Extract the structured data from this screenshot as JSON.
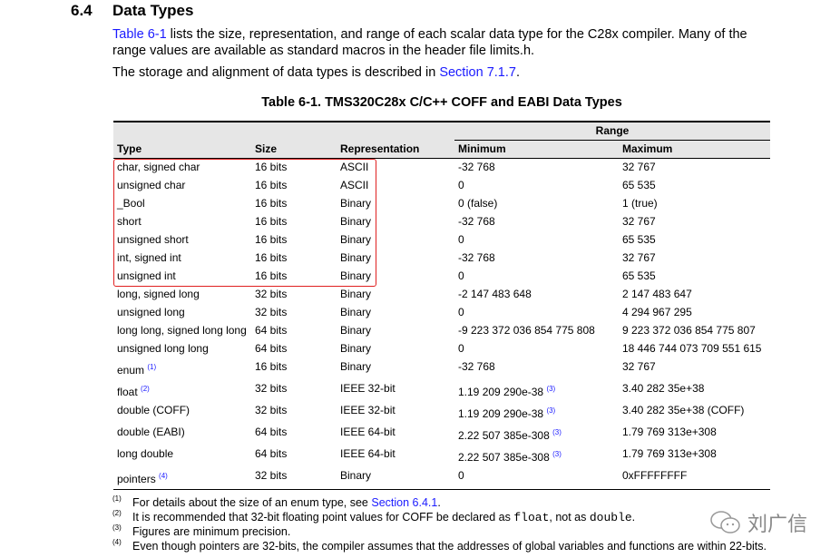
{
  "section": {
    "number": "6.4",
    "title": "Data Types"
  },
  "para1": {
    "link": "Table 6-1",
    "text": " lists the size, representation, and range of each scalar data type for the C28x compiler. Many of the range values are available as standard macros in the header file limits.h."
  },
  "para2": {
    "text": "The storage and alignment of data types is described in ",
    "link": "Section 7.1.7",
    "end": "."
  },
  "table": {
    "title": "Table 6-1. TMS320C28x C/C++ COFF and EABI Data Types",
    "headers": {
      "type": "Type",
      "size": "Size",
      "representation": "Representation",
      "range": "Range",
      "minimum": "Minimum",
      "maximum": "Maximum"
    },
    "rows": [
      {
        "type": "char, signed char",
        "size": "16 bits",
        "rep": "ASCII",
        "min": "-32 768",
        "max": "32 767"
      },
      {
        "type": "unsigned char",
        "size": "16 bits",
        "rep": "ASCII",
        "min": "0",
        "max": "65 535"
      },
      {
        "type": "_Bool",
        "size": "16 bits",
        "rep": "Binary",
        "min": "0 (false)",
        "max": "1 (true)"
      },
      {
        "type": "short",
        "size": "16 bits",
        "rep": "Binary",
        "min": "-32 768",
        "max": "32 767"
      },
      {
        "type": "unsigned short",
        "size": "16 bits",
        "rep": "Binary",
        "min": "0",
        "max": "65 535"
      },
      {
        "type": "int, signed int",
        "size": "16 bits",
        "rep": "Binary",
        "min": "-32 768",
        "max": "32 767"
      },
      {
        "type": "unsigned int",
        "size": "16 bits",
        "rep": "Binary",
        "min": "0",
        "max": "65 535"
      },
      {
        "type": "long, signed long",
        "size": "32 bits",
        "rep": "Binary",
        "min": "-2 147 483 648",
        "max": "2 147 483 647"
      },
      {
        "type": "unsigned long",
        "size": "32 bits",
        "rep": "Binary",
        "min": "0",
        "max": "4 294 967 295"
      },
      {
        "type": "long long, signed long long",
        "size": "64 bits",
        "rep": "Binary",
        "min": "-9 223 372 036 854 775 808",
        "max": "9 223 372 036 854 775 807"
      },
      {
        "type": "unsigned long long",
        "size": "64 bits",
        "rep": "Binary",
        "min": "0",
        "max": "18 446 744 073 709 551 615"
      },
      {
        "type": "enum",
        "type_note": "(1)",
        "size": "16 bits",
        "rep": "Binary",
        "min": "-32 768",
        "max": "32 767"
      },
      {
        "type": "float",
        "type_note": "(2)",
        "size": "32 bits",
        "rep": "IEEE 32-bit",
        "min": "1.19 209 290e-38",
        "min_note": "(3)",
        "max": "3.40 282 35e+38"
      },
      {
        "type": "double (COFF)",
        "size": "32 bits",
        "rep": "IEEE 32-bit",
        "min": "1.19 209 290e-38",
        "min_note": "(3)",
        "max": "3.40 282 35e+38 (COFF)"
      },
      {
        "type": "double (EABI)",
        "size": "64 bits",
        "rep": "IEEE 64-bit",
        "min": "2.22 507 385e-308",
        "min_note": "(3)",
        "max": "1.79 769 313e+308"
      },
      {
        "type": "long double",
        "size": "64 bits",
        "rep": "IEEE 64-bit",
        "min": "2.22 507 385e-308",
        "min_note": "(3)",
        "max": "1.79 769 313e+308"
      },
      {
        "type": "pointers",
        "type_note": "(4)",
        "size": "32 bits",
        "rep": "Binary",
        "min": "0",
        "max": "0xFFFFFFFF"
      }
    ]
  },
  "footnotes": [
    {
      "mark": "(1)",
      "text": "For details about the size of an enum type, see ",
      "link": "Section 6.4.1",
      "end": "."
    },
    {
      "mark": "(2)",
      "text": "It is recommended that 32-bit floating point values for COFF be declared as ",
      "code1": "float",
      "mid": ", not as ",
      "code2": "double",
      "end": "."
    },
    {
      "mark": "(3)",
      "text": "Figures are minimum precision."
    },
    {
      "mark": "(4)",
      "text": "Even though pointers are 32-bits, the compiler assumes that the addresses of global variables and functions are within 22-bits."
    }
  ],
  "watermark": {
    "text": "刘广信",
    "icon": "wechat-icon"
  },
  "highlight_color": "#e02020",
  "link_color": "#1a1aff"
}
